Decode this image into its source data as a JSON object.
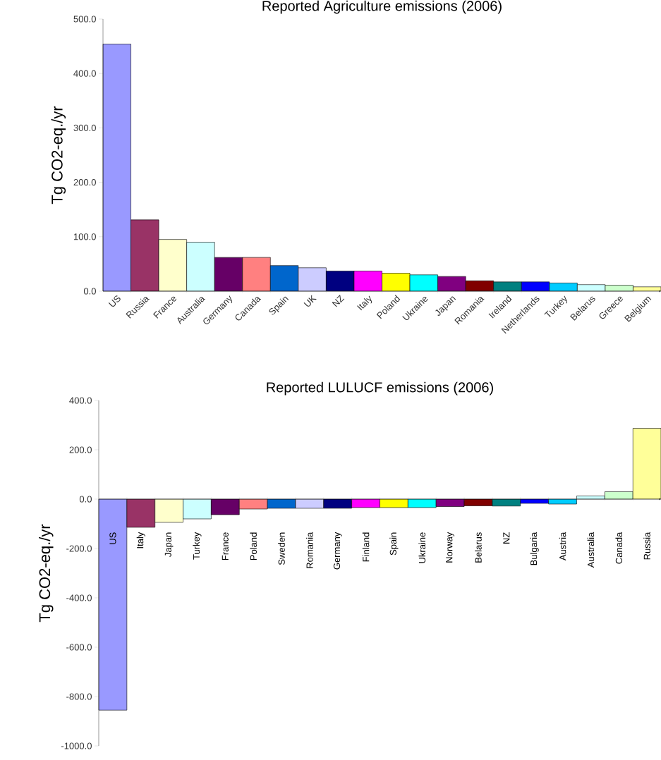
{
  "chart_data": [
    {
      "type": "bar",
      "title": "Reported Agriculture emissions (2006)",
      "ylabel": "Tg CO2-eq./yr",
      "categories": [
        "US",
        "Russia",
        "France",
        "Australia",
        "Germany",
        "Canada",
        "Spain",
        "UK",
        "NZ",
        "Italy",
        "Poland",
        "Ukraine",
        "Japan",
        "Romania",
        "Ireland",
        "Netherlands",
        "Turkey",
        "Belarus",
        "Greece",
        "Belgium"
      ],
      "values": [
        454,
        131,
        95,
        90,
        62,
        62,
        47,
        43,
        37,
        37,
        33,
        30,
        27,
        19,
        17,
        17,
        15,
        12,
        11,
        8
      ],
      "colors": [
        "#9999ff",
        "#993366",
        "#ffffcc",
        "#ccffff",
        "#660066",
        "#ff8080",
        "#0066cc",
        "#ccccff",
        "#000080",
        "#ff00ff",
        "#ffff00",
        "#00ffff",
        "#800080",
        "#800000",
        "#008080",
        "#0000ff",
        "#00ccff",
        "#ccffff",
        "#ccffcc",
        "#ffff99"
      ],
      "ylim": [
        0,
        500
      ],
      "yticks": [
        {
          "value": 0,
          "label": "0.0"
        },
        {
          "value": 100,
          "label": "100.0"
        },
        {
          "value": 200,
          "label": "200.0"
        },
        {
          "value": 300,
          "label": "300.0"
        },
        {
          "value": 400,
          "label": "400.0"
        },
        {
          "value": 500,
          "label": "500.0"
        }
      ]
    },
    {
      "type": "bar",
      "title": "Reported LULUCF emissions (2006)",
      "ylabel": "Tg CO2-eq./yr",
      "categories": [
        "US",
        "Italy",
        "Japan",
        "Turkey",
        "France",
        "Poland",
        "Sweden",
        "Romania",
        "Germany",
        "Finland",
        "Spain",
        "Ukraine",
        "Norway",
        "Belarus",
        "NZ",
        "Bulgaria",
        "Austria",
        "Australia",
        "Canada",
        "Russia"
      ],
      "values": [
        -855,
        -114,
        -94,
        -80,
        -63,
        -40,
        -37,
        -37,
        -37,
        -34,
        -34,
        -34,
        -30,
        -27,
        -28,
        -17,
        -20,
        13,
        30,
        287
      ],
      "colors": [
        "#9999ff",
        "#993366",
        "#ffffcc",
        "#ccffff",
        "#660066",
        "#ff8080",
        "#0066cc",
        "#ccccff",
        "#000080",
        "#ff00ff",
        "#ffff00",
        "#00ffff",
        "#800080",
        "#800000",
        "#008080",
        "#0000ff",
        "#00ccff",
        "#ccffff",
        "#ccffcc",
        "#ffff99"
      ],
      "ylim": [
        -1000,
        400
      ],
      "yticks": [
        {
          "value": -1000,
          "label": "-1000.0"
        },
        {
          "value": -800,
          "label": "-800.0"
        },
        {
          "value": -600,
          "label": "-600.0"
        },
        {
          "value": -400,
          "label": "-400.0"
        },
        {
          "value": -200,
          "label": "-200.0"
        },
        {
          "value": 0,
          "label": "0.0"
        },
        {
          "value": 200,
          "label": "200.0"
        },
        {
          "value": 400,
          "label": "400.0"
        }
      ]
    }
  ]
}
